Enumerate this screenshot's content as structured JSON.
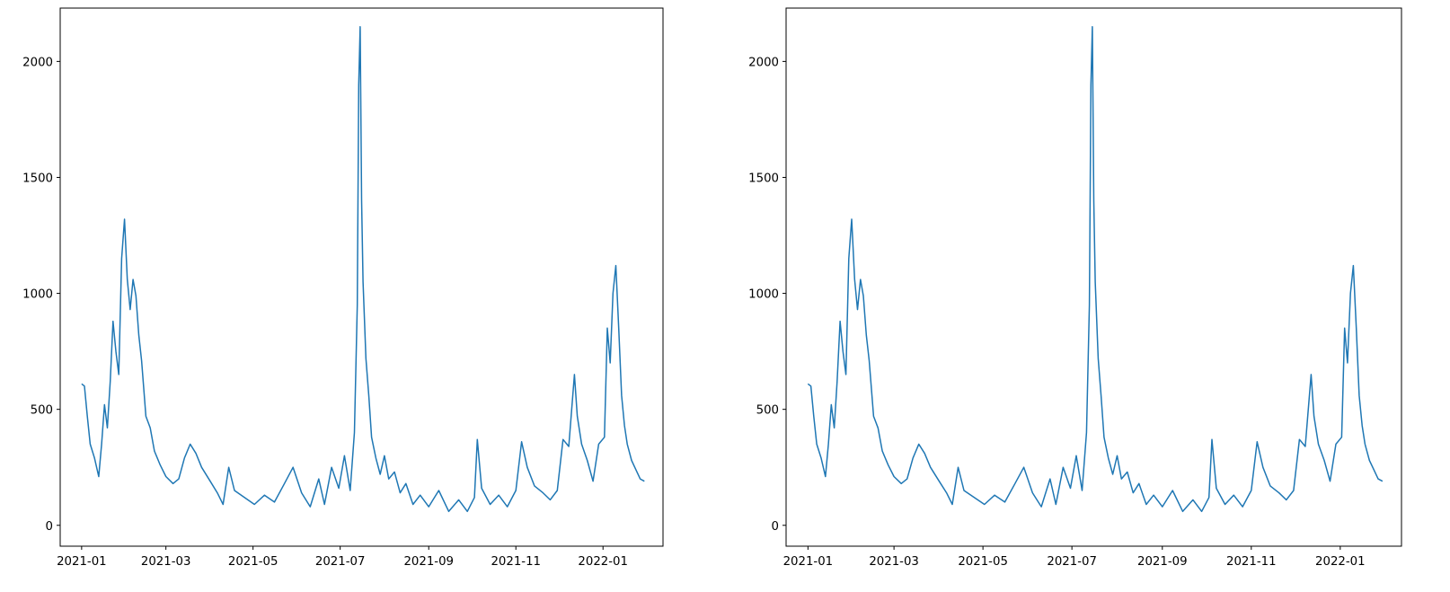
{
  "chart_data": [
    {
      "type": "line",
      "title": "",
      "xlabel": "",
      "ylabel": "",
      "xlim": [
        "2020-12-17",
        "2022-02-12"
      ],
      "ylim": [
        -90,
        2230
      ],
      "x_ticks": [
        "2021-01",
        "2021-03",
        "2021-05",
        "2021-07",
        "2021-09",
        "2021-11",
        "2022-01"
      ],
      "y_ticks": [
        0,
        500,
        1000,
        1500,
        2000
      ],
      "grid": false,
      "color": "#1f77b4",
      "series": [
        {
          "points": [
            [
              "2021-01-01",
              610
            ],
            [
              "2021-01-03",
              600
            ],
            [
              "2021-01-05",
              470
            ],
            [
              "2021-01-07",
              350
            ],
            [
              "2021-01-10",
              290
            ],
            [
              "2021-01-13",
              210
            ],
            [
              "2021-01-15",
              350
            ],
            [
              "2021-01-17",
              520
            ],
            [
              "2021-01-19",
              420
            ],
            [
              "2021-01-21",
              620
            ],
            [
              "2021-01-23",
              880
            ],
            [
              "2021-01-25",
              750
            ],
            [
              "2021-01-27",
              650
            ],
            [
              "2021-01-29",
              1150
            ],
            [
              "2021-01-31",
              1320
            ],
            [
              "2021-02-02",
              1060
            ],
            [
              "2021-02-04",
              930
            ],
            [
              "2021-02-06",
              1060
            ],
            [
              "2021-02-08",
              990
            ],
            [
              "2021-02-10",
              820
            ],
            [
              "2021-02-12",
              710
            ],
            [
              "2021-02-15",
              470
            ],
            [
              "2021-02-18",
              420
            ],
            [
              "2021-02-21",
              320
            ],
            [
              "2021-02-25",
              260
            ],
            [
              "2021-03-01",
              210
            ],
            [
              "2021-03-06",
              180
            ],
            [
              "2021-03-10",
              200
            ],
            [
              "2021-03-14",
              290
            ],
            [
              "2021-03-18",
              350
            ],
            [
              "2021-03-22",
              310
            ],
            [
              "2021-03-26",
              250
            ],
            [
              "2021-04-01",
              190
            ],
            [
              "2021-04-06",
              140
            ],
            [
              "2021-04-10",
              90
            ],
            [
              "2021-04-14",
              250
            ],
            [
              "2021-04-18",
              150
            ],
            [
              "2021-04-25",
              120
            ],
            [
              "2021-05-02",
              90
            ],
            [
              "2021-05-09",
              130
            ],
            [
              "2021-05-16",
              100
            ],
            [
              "2021-05-23",
              180
            ],
            [
              "2021-05-29",
              250
            ],
            [
              "2021-06-04",
              140
            ],
            [
              "2021-06-10",
              80
            ],
            [
              "2021-06-16",
              200
            ],
            [
              "2021-06-20",
              90
            ],
            [
              "2021-06-25",
              250
            ],
            [
              "2021-06-30",
              160
            ],
            [
              "2021-07-04",
              300
            ],
            [
              "2021-07-08",
              150
            ],
            [
              "2021-07-11",
              400
            ],
            [
              "2021-07-13",
              950
            ],
            [
              "2021-07-14",
              1900
            ],
            [
              "2021-07-15",
              2150
            ],
            [
              "2021-07-16",
              1400
            ],
            [
              "2021-07-17",
              1050
            ],
            [
              "2021-07-19",
              720
            ],
            [
              "2021-07-21",
              560
            ],
            [
              "2021-07-23",
              380
            ],
            [
              "2021-07-26",
              290
            ],
            [
              "2021-07-29",
              220
            ],
            [
              "2021-08-01",
              300
            ],
            [
              "2021-08-04",
              200
            ],
            [
              "2021-08-08",
              230
            ],
            [
              "2021-08-12",
              140
            ],
            [
              "2021-08-16",
              180
            ],
            [
              "2021-08-21",
              90
            ],
            [
              "2021-08-26",
              130
            ],
            [
              "2021-09-01",
              80
            ],
            [
              "2021-09-08",
              150
            ],
            [
              "2021-09-15",
              60
            ],
            [
              "2021-09-22",
              110
            ],
            [
              "2021-09-28",
              60
            ],
            [
              "2021-10-03",
              120
            ],
            [
              "2021-10-05",
              370
            ],
            [
              "2021-10-08",
              160
            ],
            [
              "2021-10-14",
              90
            ],
            [
              "2021-10-20",
              130
            ],
            [
              "2021-10-26",
              80
            ],
            [
              "2021-11-01",
              150
            ],
            [
              "2021-11-05",
              360
            ],
            [
              "2021-11-09",
              250
            ],
            [
              "2021-11-14",
              170
            ],
            [
              "2021-11-20",
              140
            ],
            [
              "2021-11-25",
              110
            ],
            [
              "2021-11-30",
              150
            ],
            [
              "2021-12-04",
              370
            ],
            [
              "2021-12-08",
              340
            ],
            [
              "2021-12-12",
              650
            ],
            [
              "2021-12-14",
              470
            ],
            [
              "2021-12-17",
              350
            ],
            [
              "2021-12-21",
              280
            ],
            [
              "2021-12-25",
              190
            ],
            [
              "2021-12-29",
              350
            ],
            [
              "2022-01-02",
              380
            ],
            [
              "2022-01-04",
              850
            ],
            [
              "2022-01-06",
              700
            ],
            [
              "2022-01-08",
              1000
            ],
            [
              "2022-01-10",
              1120
            ],
            [
              "2022-01-12",
              850
            ],
            [
              "2022-01-14",
              560
            ],
            [
              "2022-01-16",
              430
            ],
            [
              "2022-01-18",
              350
            ],
            [
              "2022-01-21",
              280
            ],
            [
              "2022-01-24",
              240
            ],
            [
              "2022-01-27",
              200
            ],
            [
              "2022-01-30",
              190
            ]
          ]
        }
      ]
    },
    {
      "type": "line",
      "title": "",
      "xlabel": "",
      "ylabel": "",
      "xlim": [
        "2020-12-17",
        "2022-02-12"
      ],
      "ylim": [
        -90,
        2230
      ],
      "x_ticks": [
        "2021-01",
        "2021-03",
        "2021-05",
        "2021-07",
        "2021-09",
        "2021-11",
        "2022-01"
      ],
      "y_ticks": [
        0,
        500,
        1000,
        1500,
        2000
      ],
      "grid": false,
      "color": "#1f77b4",
      "series": [
        {
          "points": [
            [
              "2021-01-01",
              610
            ],
            [
              "2021-01-03",
              600
            ],
            [
              "2021-01-05",
              470
            ],
            [
              "2021-01-07",
              350
            ],
            [
              "2021-01-10",
              290
            ],
            [
              "2021-01-13",
              210
            ],
            [
              "2021-01-15",
              350
            ],
            [
              "2021-01-17",
              520
            ],
            [
              "2021-01-19",
              420
            ],
            [
              "2021-01-21",
              620
            ],
            [
              "2021-01-23",
              880
            ],
            [
              "2021-01-25",
              750
            ],
            [
              "2021-01-27",
              650
            ],
            [
              "2021-01-29",
              1150
            ],
            [
              "2021-01-31",
              1320
            ],
            [
              "2021-02-02",
              1060
            ],
            [
              "2021-02-04",
              930
            ],
            [
              "2021-02-06",
              1060
            ],
            [
              "2021-02-08",
              990
            ],
            [
              "2021-02-10",
              820
            ],
            [
              "2021-02-12",
              710
            ],
            [
              "2021-02-15",
              470
            ],
            [
              "2021-02-18",
              420
            ],
            [
              "2021-02-21",
              320
            ],
            [
              "2021-02-25",
              260
            ],
            [
              "2021-03-01",
              210
            ],
            [
              "2021-03-06",
              180
            ],
            [
              "2021-03-10",
              200
            ],
            [
              "2021-03-14",
              290
            ],
            [
              "2021-03-18",
              350
            ],
            [
              "2021-03-22",
              310
            ],
            [
              "2021-03-26",
              250
            ],
            [
              "2021-04-01",
              190
            ],
            [
              "2021-04-06",
              140
            ],
            [
              "2021-04-10",
              90
            ],
            [
              "2021-04-14",
              250
            ],
            [
              "2021-04-18",
              150
            ],
            [
              "2021-04-25",
              120
            ],
            [
              "2021-05-02",
              90
            ],
            [
              "2021-05-09",
              130
            ],
            [
              "2021-05-16",
              100
            ],
            [
              "2021-05-23",
              180
            ],
            [
              "2021-05-29",
              250
            ],
            [
              "2021-06-04",
              140
            ],
            [
              "2021-06-10",
              80
            ],
            [
              "2021-06-16",
              200
            ],
            [
              "2021-06-20",
              90
            ],
            [
              "2021-06-25",
              250
            ],
            [
              "2021-06-30",
              160
            ],
            [
              "2021-07-04",
              300
            ],
            [
              "2021-07-08",
              150
            ],
            [
              "2021-07-11",
              400
            ],
            [
              "2021-07-13",
              950
            ],
            [
              "2021-07-14",
              1900
            ],
            [
              "2021-07-15",
              2150
            ],
            [
              "2021-07-16",
              1400
            ],
            [
              "2021-07-17",
              1050
            ],
            [
              "2021-07-19",
              720
            ],
            [
              "2021-07-21",
              560
            ],
            [
              "2021-07-23",
              380
            ],
            [
              "2021-07-26",
              290
            ],
            [
              "2021-07-29",
              220
            ],
            [
              "2021-08-01",
              300
            ],
            [
              "2021-08-04",
              200
            ],
            [
              "2021-08-08",
              230
            ],
            [
              "2021-08-12",
              140
            ],
            [
              "2021-08-16",
              180
            ],
            [
              "2021-08-21",
              90
            ],
            [
              "2021-08-26",
              130
            ],
            [
              "2021-09-01",
              80
            ],
            [
              "2021-09-08",
              150
            ],
            [
              "2021-09-15",
              60
            ],
            [
              "2021-09-22",
              110
            ],
            [
              "2021-09-28",
              60
            ],
            [
              "2021-10-03",
              120
            ],
            [
              "2021-10-05",
              370
            ],
            [
              "2021-10-08",
              160
            ],
            [
              "2021-10-14",
              90
            ],
            [
              "2021-10-20",
              130
            ],
            [
              "2021-10-26",
              80
            ],
            [
              "2021-11-01",
              150
            ],
            [
              "2021-11-05",
              360
            ],
            [
              "2021-11-09",
              250
            ],
            [
              "2021-11-14",
              170
            ],
            [
              "2021-11-20",
              140
            ],
            [
              "2021-11-25",
              110
            ],
            [
              "2021-11-30",
              150
            ],
            [
              "2021-12-04",
              370
            ],
            [
              "2021-12-08",
              340
            ],
            [
              "2021-12-12",
              650
            ],
            [
              "2021-12-14",
              470
            ],
            [
              "2021-12-17",
              350
            ],
            [
              "2021-12-21",
              280
            ],
            [
              "2021-12-25",
              190
            ],
            [
              "2021-12-29",
              350
            ],
            [
              "2022-01-02",
              380
            ],
            [
              "2022-01-04",
              850
            ],
            [
              "2022-01-06",
              700
            ],
            [
              "2022-01-08",
              1000
            ],
            [
              "2022-01-10",
              1120
            ],
            [
              "2022-01-12",
              850
            ],
            [
              "2022-01-14",
              560
            ],
            [
              "2022-01-16",
              430
            ],
            [
              "2022-01-18",
              350
            ],
            [
              "2022-01-21",
              280
            ],
            [
              "2022-01-24",
              240
            ],
            [
              "2022-01-27",
              200
            ],
            [
              "2022-01-30",
              190
            ]
          ]
        }
      ]
    }
  ]
}
